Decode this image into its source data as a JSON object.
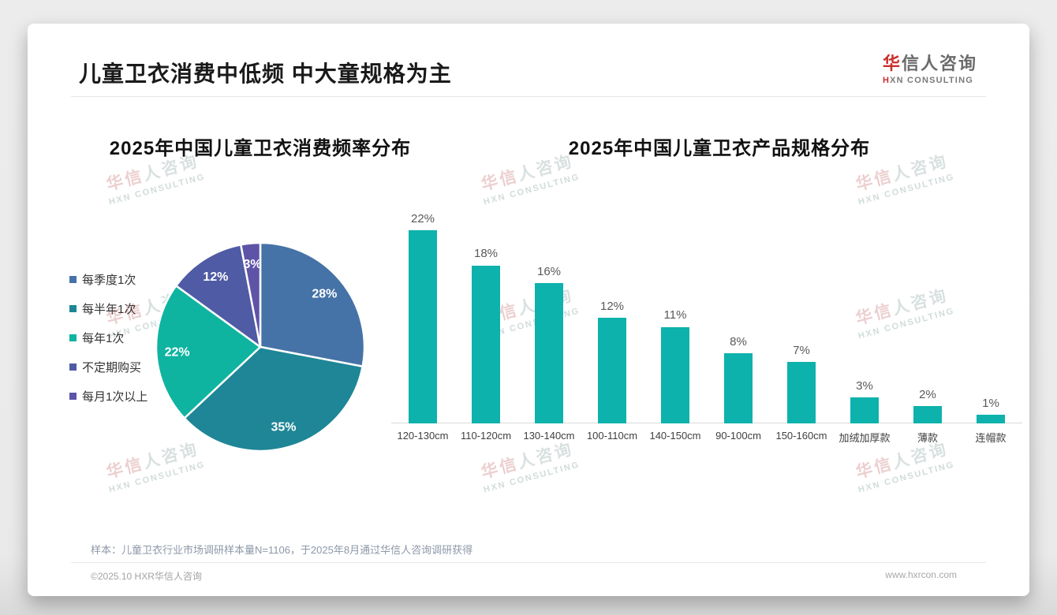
{
  "header": {
    "title": "儿童卫衣消费中低频 中大童规格为主",
    "logo": {
      "cn_red": "华",
      "cn_rest": "信人咨询",
      "en_red": "H",
      "en_rest": "XN CONSULTING"
    }
  },
  "watermark": {
    "line1": "华信人咨询",
    "line2": "HXN CONSULTING"
  },
  "chart_data": [
    {
      "type": "pie",
      "title": "2025年中国儿童卫衣消费频率分布",
      "labels": [
        "每季度1次",
        "每半年1次",
        "每年1次",
        "不定期购买",
        "每月1次以上"
      ],
      "values": [
        28,
        35,
        22,
        12,
        3
      ],
      "value_suffix": "%",
      "colors": [
        "#4573A7",
        "#1E8696",
        "#0FB4A0",
        "#4F5BA4",
        "#5D54A8"
      ],
      "legend_position": "left",
      "start_angle_deg": 0,
      "direction": "clockwise"
    },
    {
      "type": "bar",
      "title": "2025年中国儿童卫衣产品规格分布",
      "categories": [
        "120-130cm",
        "110-120cm",
        "130-140cm",
        "100-110cm",
        "140-150cm",
        "90-100cm",
        "150-160cm",
        "加绒加厚款",
        "薄款",
        "连帽款"
      ],
      "values": [
        22,
        18,
        16,
        12,
        11,
        8,
        7,
        3,
        2,
        1
      ],
      "value_suffix": "%",
      "bar_color": "#0DB2AC",
      "ylim": [
        0,
        24
      ],
      "grid": false,
      "xlabel": "",
      "ylabel": ""
    }
  ],
  "footnote": "样本：儿童卫衣行业市场调研样本量N=1106，于2025年8月通过华信人咨询调研获得",
  "footer": {
    "left": "©2025.10 HXR华信人咨询",
    "right": "www.hxrcon.com"
  }
}
